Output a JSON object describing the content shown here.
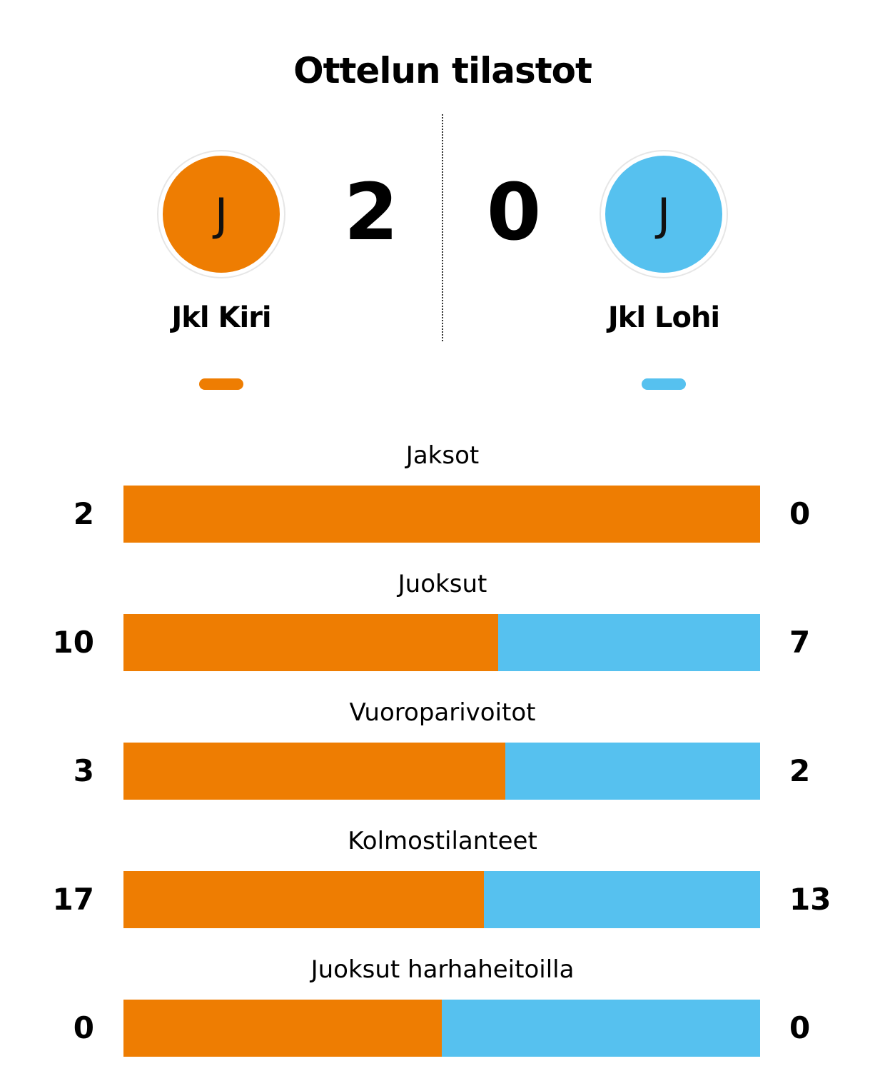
{
  "title": "Ottelun tilastot",
  "colors": {
    "home": "#EE7D02",
    "away": "#56C1EF"
  },
  "home": {
    "name": "Jkl Kiri",
    "logo_letter": "J",
    "score": "2"
  },
  "away": {
    "name": "Jkl Lohi",
    "logo_letter": "J",
    "score": "0"
  },
  "chart_data": {
    "type": "bar",
    "orientation": "horizontal-stacked",
    "categories": [
      "Jaksot",
      "Juoksut",
      "Vuoroparivoitot",
      "Kolmostilanteet",
      "Juoksut harhaheitoilla"
    ],
    "series": [
      {
        "name": "Jkl Kiri",
        "values": [
          2,
          10,
          3,
          17,
          0
        ]
      },
      {
        "name": "Jkl Lohi",
        "values": [
          0,
          7,
          2,
          13,
          0
        ]
      }
    ]
  }
}
